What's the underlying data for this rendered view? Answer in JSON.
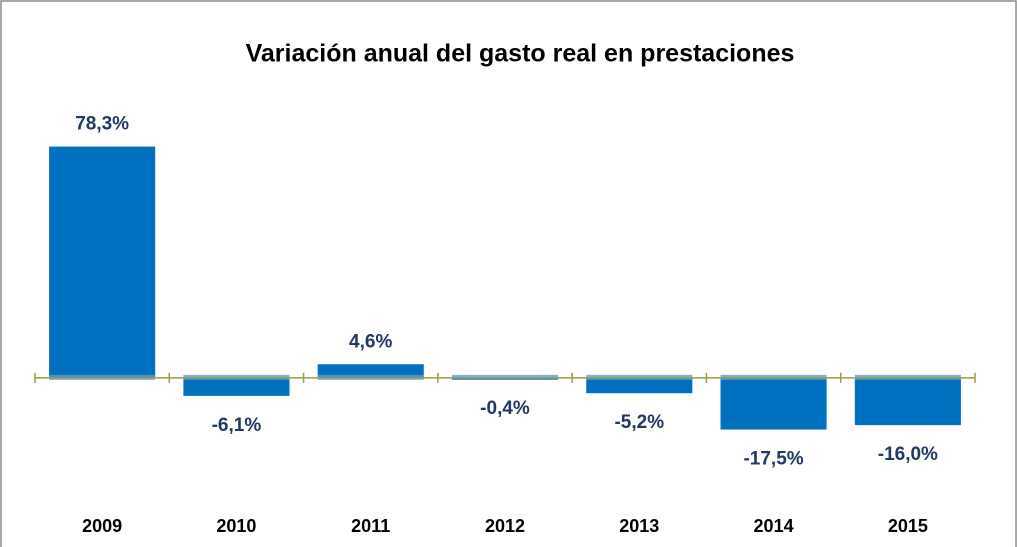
{
  "chart_data": {
    "type": "bar",
    "title": "Variación anual del gasto  real en prestaciones",
    "categories": [
      "2009",
      "2010",
      "2011",
      "2012",
      "2013",
      "2014",
      "2015"
    ],
    "values": [
      78.3,
      -6.1,
      4.6,
      -0.4,
      -5.2,
      -17.5,
      -16.0
    ],
    "value_labels": [
      "78,3%",
      "-6,1%",
      "4,6%",
      "-0,4%",
      "-5,2%",
      "-17,5%",
      "-16,0%"
    ],
    "color": "#0070c0",
    "ylim": [
      -40,
      90
    ],
    "grid": false
  }
}
